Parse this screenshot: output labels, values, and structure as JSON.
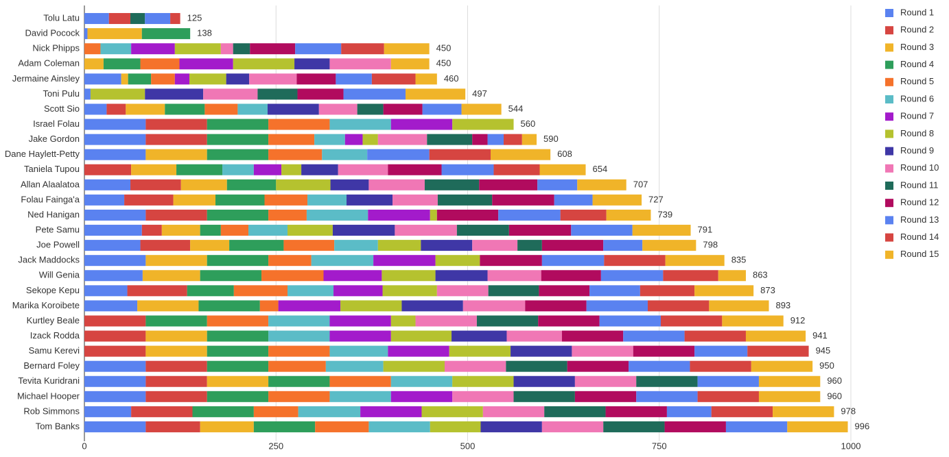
{
  "chart_data": {
    "type": "stacked-bar-horizontal",
    "categories": [
      "Tolu Latu",
      "David Pocock",
      "Nick Phipps",
      "Adam Coleman",
      "Jermaine Ainsley",
      "Toni Pulu",
      "Scott Sio",
      "Israel Folau",
      "Jake Gordon",
      "Dane Haylett-Petty",
      "Taniela Tupou",
      "Allan Alaalatoa",
      "Folau Fainga'a",
      "Ned Hanigan",
      "Pete Samu",
      "Joe Powell",
      "Jack Maddocks",
      "Will Genia",
      "Sekope Kepu",
      "Marika Koroibete",
      "Kurtley Beale",
      "Izack Rodda",
      "Samu Kerevi",
      "Bernard Foley",
      "Tevita Kuridrani",
      "Michael Hooper",
      "Rob Simmons",
      "Tom Banks"
    ],
    "totals": [
      125,
      138,
      450,
      450,
      460,
      497,
      544,
      560,
      590,
      608,
      654,
      707,
      727,
      739,
      791,
      798,
      835,
      863,
      873,
      893,
      912,
      941,
      945,
      950,
      960,
      960,
      978,
      996
    ],
    "series": [
      {
        "name": "Round 1",
        "color": "#5a82f0",
        "values": [
          32,
          4,
          0,
          0,
          48,
          8,
          29,
          80,
          80,
          80,
          0,
          60,
          52,
          80,
          75,
          73,
          80,
          76,
          56,
          69,
          0,
          0,
          0,
          80,
          80,
          80,
          61,
          80
        ]
      },
      {
        "name": "Round 2",
        "color": "#d64541",
        "values": [
          28,
          0,
          0,
          0,
          0,
          0,
          25,
          80,
          80,
          0,
          61,
          66,
          64,
          80,
          26,
          65,
          0,
          0,
          78,
          0,
          80,
          80,
          80,
          80,
          80,
          80,
          80,
          71
        ]
      },
      {
        "name": "Round 3",
        "color": "#f0b429",
        "values": [
          0,
          71,
          0,
          25,
          9,
          0,
          51,
          0,
          0,
          80,
          59,
          60,
          55,
          0,
          50,
          51,
          80,
          75,
          0,
          80,
          0,
          80,
          80,
          0,
          80,
          0,
          0,
          70
        ]
      },
      {
        "name": "Round 4",
        "color": "#2e9e5b",
        "values": [
          0,
          63,
          0,
          48,
          30,
          0,
          52,
          80,
          80,
          80,
          60,
          64,
          64,
          80,
          27,
          71,
          80,
          80,
          61,
          80,
          80,
          80,
          80,
          80,
          80,
          80,
          80,
          80
        ]
      },
      {
        "name": "Round 5",
        "color": "#f5722b",
        "values": [
          0,
          0,
          21,
          51,
          31,
          0,
          43,
          80,
          60,
          70,
          0,
          0,
          56,
          50,
          36,
          66,
          56,
          81,
          70,
          24,
          80,
          0,
          80,
          75,
          80,
          80,
          58,
          70
        ]
      },
      {
        "name": "Round 6",
        "color": "#5bbcc7",
        "values": [
          0,
          0,
          40,
          0,
          0,
          0,
          39,
          80,
          40,
          59,
          41,
          0,
          51,
          80,
          51,
          57,
          81,
          0,
          60,
          0,
          80,
          80,
          76,
          75,
          80,
          80,
          81,
          80
        ]
      },
      {
        "name": "Round 7",
        "color": "#a31bcb",
        "values": [
          0,
          0,
          57,
          70,
          19,
          0,
          0,
          80,
          23,
          0,
          36,
          0,
          0,
          81,
          0,
          0,
          81,
          76,
          64,
          81,
          80,
          80,
          80,
          0,
          0,
          80,
          80,
          0
        ]
      },
      {
        "name": "Round 8",
        "color": "#b5c22f",
        "values": [
          0,
          0,
          60,
          80,
          48,
          71,
          0,
          80,
          20,
          0,
          26,
          71,
          0,
          9,
          59,
          56,
          58,
          70,
          71,
          80,
          32,
          79,
          80,
          80,
          80,
          0,
          80,
          66
        ]
      },
      {
        "name": "Round 9",
        "color": "#3f37a6",
        "values": [
          0,
          0,
          0,
          46,
          30,
          76,
          67,
          0,
          0,
          0,
          48,
          50,
          60,
          0,
          81,
          67,
          0,
          68,
          0,
          80,
          0,
          72,
          80,
          0,
          80,
          0,
          0,
          80
        ]
      },
      {
        "name": "Round 10",
        "color": "#f077b5",
        "values": [
          0,
          0,
          16,
          80,
          62,
          71,
          50,
          0,
          64,
          0,
          65,
          73,
          59,
          0,
          81,
          59,
          0,
          70,
          67,
          81,
          80,
          72,
          80,
          80,
          80,
          80,
          80,
          80
        ]
      },
      {
        "name": "Round 11",
        "color": "#1f6b5a",
        "values": [
          19,
          0,
          22,
          0,
          0,
          52,
          34,
          0,
          59,
          0,
          0,
          71,
          71,
          0,
          68,
          32,
          0,
          0,
          66,
          0,
          80,
          0,
          0,
          80,
          80,
          80,
          80,
          80
        ]
      },
      {
        "name": "Round 12",
        "color": "#b10b5e",
        "values": [
          0,
          0,
          59,
          0,
          51,
          60,
          51,
          0,
          20,
          0,
          70,
          76,
          81,
          80,
          81,
          80,
          81,
          78,
          66,
          80,
          80,
          80,
          80,
          80,
          0,
          80,
          80,
          80
        ]
      },
      {
        "name": "Round 13",
        "color": "#5a82f0",
        "values": [
          33,
          0,
          60,
          0,
          47,
          81,
          51,
          0,
          21,
          81,
          68,
          52,
          50,
          81,
          80,
          51,
          81,
          81,
          66,
          80,
          80,
          80,
          69,
          80,
          80,
          80,
          58,
          80
        ]
      },
      {
        "name": "Round 14",
        "color": "#d64541",
        "values": [
          13,
          0,
          56,
          0,
          57,
          0,
          0,
          0,
          24,
          80,
          60,
          0,
          0,
          60,
          0,
          0,
          80,
          72,
          71,
          80,
          80,
          80,
          80,
          80,
          0,
          80,
          80,
          0
        ]
      },
      {
        "name": "Round 15",
        "color": "#f0b429",
        "values": [
          0,
          0,
          59,
          50,
          28,
          78,
          52,
          0,
          19,
          78,
          60,
          64,
          64,
          58,
          76,
          70,
          77,
          36,
          77,
          78,
          80,
          78,
          0,
          80,
          80,
          80,
          80,
          79
        ]
      }
    ],
    "xlim": [
      0,
      1000
    ],
    "xticks": [
      0,
      250,
      500,
      750,
      1000
    ],
    "grid": true,
    "legend": "right"
  }
}
